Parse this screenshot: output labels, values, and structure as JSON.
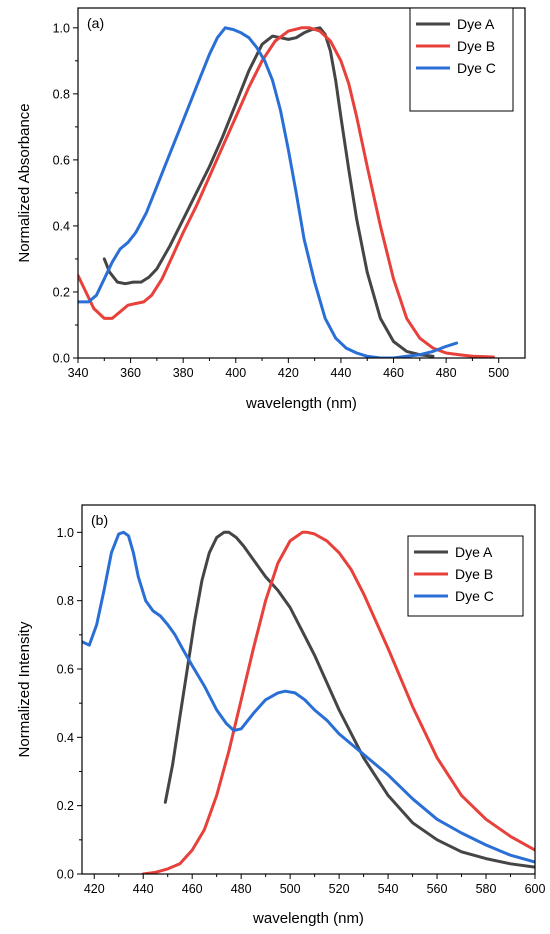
{
  "chart_data": [
    {
      "type": "line",
      "panel_label": "(a)",
      "xlabel": "wavelength (nm)",
      "ylabel": "Normalized Absorbance",
      "xlim": [
        340,
        510
      ],
      "ylim": [
        0,
        1.06
      ],
      "xticks": [
        340,
        360,
        380,
        400,
        420,
        440,
        460,
        480,
        500
      ],
      "yticks": [
        0.0,
        0.2,
        0.4,
        0.6,
        0.8,
        1.0
      ],
      "legend_position": "top-right",
      "series": [
        {
          "name": "Dye A",
          "color": "#454545",
          "x": [
            350,
            352,
            355,
            358,
            361,
            364,
            367,
            370,
            375,
            380,
            385,
            390,
            395,
            400,
            405,
            410,
            414,
            417,
            420,
            423,
            426,
            429,
            432,
            434,
            436,
            438,
            440,
            443,
            446,
            450,
            455,
            460,
            465,
            470,
            475
          ],
          "y": [
            0.3,
            0.26,
            0.23,
            0.225,
            0.23,
            0.23,
            0.245,
            0.27,
            0.34,
            0.42,
            0.5,
            0.58,
            0.67,
            0.77,
            0.87,
            0.95,
            0.975,
            0.97,
            0.965,
            0.97,
            0.985,
            0.995,
            1.0,
            0.98,
            0.93,
            0.84,
            0.73,
            0.57,
            0.42,
            0.26,
            0.12,
            0.05,
            0.02,
            0.01,
            0.005
          ]
        },
        {
          "name": "Dye B",
          "color": "#e8403a",
          "x": [
            340,
            343,
            346,
            350,
            353,
            356,
            359,
            362,
            365,
            368,
            372,
            376,
            380,
            385,
            390,
            395,
            400,
            405,
            410,
            415,
            420,
            425,
            428,
            432,
            436,
            440,
            443,
            446,
            450,
            455,
            460,
            465,
            470,
            475,
            480,
            485,
            490,
            498
          ],
          "y": [
            0.25,
            0.2,
            0.15,
            0.12,
            0.12,
            0.14,
            0.16,
            0.165,
            0.17,
            0.19,
            0.24,
            0.31,
            0.38,
            0.46,
            0.55,
            0.64,
            0.73,
            0.82,
            0.9,
            0.96,
            0.99,
            1.0,
            1.0,
            0.99,
            0.96,
            0.9,
            0.83,
            0.73,
            0.58,
            0.4,
            0.24,
            0.12,
            0.06,
            0.03,
            0.015,
            0.01,
            0.005,
            0.003
          ]
        },
        {
          "name": "Dye C",
          "color": "#2a6fd6",
          "x": [
            340,
            344,
            347,
            350,
            353,
            356,
            359,
            362,
            366,
            370,
            375,
            380,
            385,
            390,
            393,
            396,
            399,
            402,
            405,
            408,
            411,
            414,
            417,
            420,
            423,
            426,
            430,
            434,
            438,
            442,
            446,
            450,
            455,
            460,
            465,
            470,
            475,
            480,
            484
          ],
          "y": [
            0.17,
            0.17,
            0.19,
            0.24,
            0.29,
            0.33,
            0.35,
            0.38,
            0.44,
            0.52,
            0.62,
            0.72,
            0.82,
            0.92,
            0.97,
            1.0,
            0.995,
            0.985,
            0.97,
            0.94,
            0.9,
            0.84,
            0.75,
            0.63,
            0.5,
            0.36,
            0.23,
            0.12,
            0.06,
            0.03,
            0.015,
            0.005,
            0.0,
            0.0,
            0.005,
            0.01,
            0.02,
            0.035,
            0.045
          ]
        }
      ]
    },
    {
      "type": "line",
      "panel_label": "(b)",
      "xlabel": "wavelength (nm)",
      "ylabel": "Normalized Intensity",
      "xlim": [
        415,
        600
      ],
      "ylim": [
        0,
        1.08
      ],
      "xticks": [
        420,
        440,
        460,
        480,
        500,
        520,
        540,
        560,
        580,
        600
      ],
      "yticks": [
        0.0,
        0.2,
        0.4,
        0.6,
        0.8,
        1.0
      ],
      "legend_position": "top-right",
      "series": [
        {
          "name": "Dye A",
          "color": "#454545",
          "x": [
            449,
            452,
            455,
            458,
            461,
            464,
            467,
            470,
            473,
            475,
            478,
            481,
            485,
            490,
            495,
            500,
            505,
            510,
            515,
            520,
            525,
            530,
            540,
            550,
            560,
            570,
            580,
            590,
            600
          ],
          "y": [
            0.21,
            0.32,
            0.46,
            0.6,
            0.74,
            0.86,
            0.94,
            0.985,
            1.0,
            1.0,
            0.985,
            0.96,
            0.92,
            0.87,
            0.83,
            0.78,
            0.71,
            0.64,
            0.56,
            0.48,
            0.41,
            0.34,
            0.23,
            0.15,
            0.1,
            0.065,
            0.045,
            0.03,
            0.02
          ]
        },
        {
          "name": "Dye B",
          "color": "#e8403a",
          "x": [
            440,
            445,
            450,
            455,
            460,
            465,
            470,
            475,
            480,
            485,
            490,
            495,
            500,
            505,
            507,
            510,
            515,
            520,
            525,
            530,
            540,
            550,
            560,
            570,
            580,
            590,
            600
          ],
          "y": [
            0.0,
            0.005,
            0.015,
            0.03,
            0.07,
            0.13,
            0.23,
            0.36,
            0.51,
            0.66,
            0.8,
            0.91,
            0.975,
            1.0,
            1.0,
            0.995,
            0.975,
            0.94,
            0.89,
            0.82,
            0.66,
            0.49,
            0.34,
            0.23,
            0.16,
            0.11,
            0.07
          ]
        },
        {
          "name": "Dye C",
          "color": "#2a6fd6",
          "x": [
            415,
            418,
            421,
            424,
            427,
            430,
            432,
            434,
            436,
            438,
            441,
            444,
            447,
            450,
            453,
            456,
            460,
            465,
            470,
            474,
            477,
            480,
            485,
            490,
            495,
            498,
            502,
            506,
            510,
            515,
            520,
            530,
            540,
            550,
            560,
            570,
            580,
            590,
            600
          ],
          "y": [
            0.68,
            0.67,
            0.73,
            0.83,
            0.94,
            0.995,
            1.0,
            0.99,
            0.94,
            0.87,
            0.8,
            0.77,
            0.755,
            0.73,
            0.7,
            0.66,
            0.61,
            0.55,
            0.48,
            0.44,
            0.42,
            0.425,
            0.47,
            0.51,
            0.53,
            0.535,
            0.53,
            0.51,
            0.48,
            0.45,
            0.41,
            0.35,
            0.29,
            0.22,
            0.16,
            0.12,
            0.085,
            0.055,
            0.035
          ]
        }
      ]
    }
  ]
}
